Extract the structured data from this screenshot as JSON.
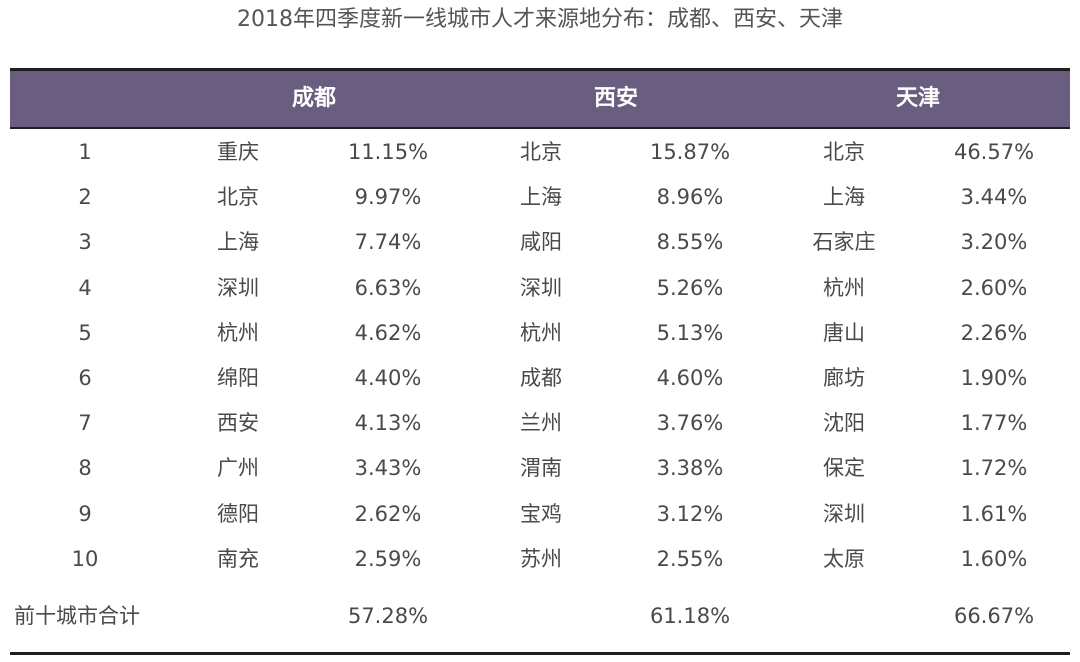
{
  "title": "2018年四季度新一线城市人才来源地分布：成都、西安、天津",
  "header": {
    "city1": "成都",
    "city2": "西安",
    "city3": "天津"
  },
  "rows": [
    {
      "rank": "1",
      "c1": "重庆",
      "p1": "11.15%",
      "c2": "北京",
      "p2": "15.87%",
      "c3": "北京",
      "p3": "46.57%"
    },
    {
      "rank": "2",
      "c1": "北京",
      "p1": "9.97%",
      "c2": "上海",
      "p2": "8.96%",
      "c3": "上海",
      "p3": "3.44%"
    },
    {
      "rank": "3",
      "c1": "上海",
      "p1": "7.74%",
      "c2": "咸阳",
      "p2": "8.55%",
      "c3": "石家庄",
      "p3": "3.20%"
    },
    {
      "rank": "4",
      "c1": "深圳",
      "p1": "6.63%",
      "c2": "深圳",
      "p2": "5.26%",
      "c3": "杭州",
      "p3": "2.60%"
    },
    {
      "rank": "5",
      "c1": "杭州",
      "p1": "4.62%",
      "c2": "杭州",
      "p2": "5.13%",
      "c3": "唐山",
      "p3": "2.26%"
    },
    {
      "rank": "6",
      "c1": "绵阳",
      "p1": "4.40%",
      "c2": "成都",
      "p2": "4.60%",
      "c3": "廊坊",
      "p3": "1.90%"
    },
    {
      "rank": "7",
      "c1": "西安",
      "p1": "4.13%",
      "c2": "兰州",
      "p2": "3.76%",
      "c3": "沈阳",
      "p3": "1.77%"
    },
    {
      "rank": "8",
      "c1": "广州",
      "p1": "3.43%",
      "c2": "渭南",
      "p2": "3.38%",
      "c3": "保定",
      "p3": "1.72%"
    },
    {
      "rank": "9",
      "c1": "德阳",
      "p1": "2.62%",
      "c2": "宝鸡",
      "p2": "3.12%",
      "c3": "深圳",
      "p3": "1.61%"
    },
    {
      "rank": "10",
      "c1": "南充",
      "p1": "2.59%",
      "c2": "苏州",
      "p2": "2.55%",
      "c3": "太原",
      "p3": "1.60%"
    }
  ],
  "total": {
    "label": "前十城市合计",
    "v1": "57.28%",
    "v2": "61.18%",
    "v3": "66.67%"
  },
  "colors": {
    "header_band": "#6a5e80",
    "rule": "#1e1e1e",
    "text": "#4a4a4a"
  }
}
